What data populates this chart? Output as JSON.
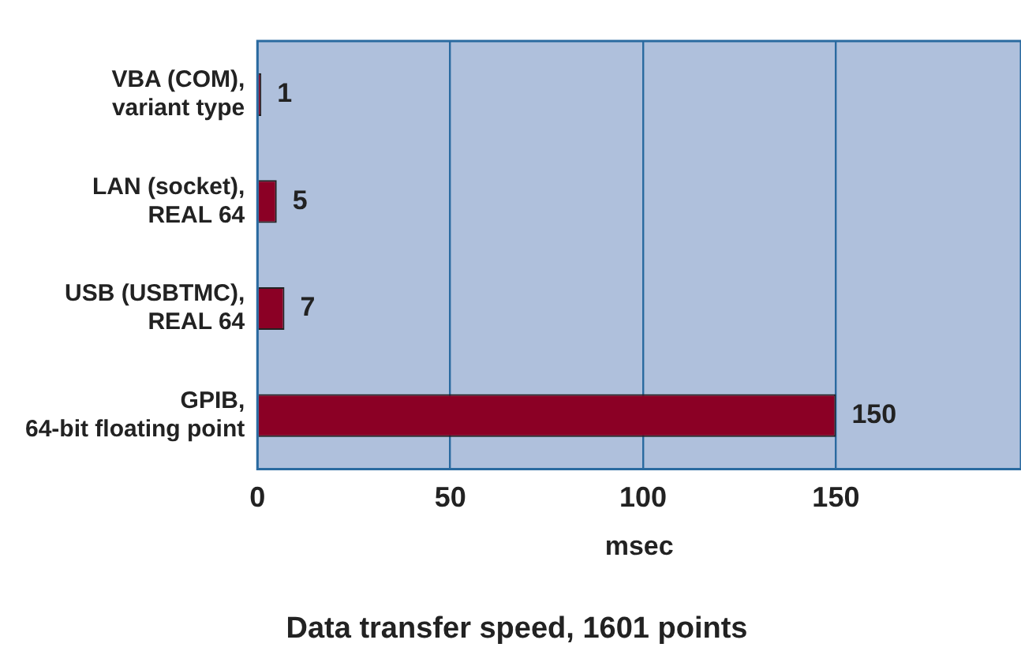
{
  "chart_data": {
    "type": "bar",
    "orientation": "horizontal",
    "title": "Data transfer speed, 1601 points",
    "xlabel": "msec",
    "categories": [
      "VBA (COM),\nvariant type",
      "LAN (socket),\nREAL 64",
      "USB (USBTMC),\nREAL 64",
      "GPIB,\n64-bit floating point"
    ],
    "values": [
      1,
      5,
      7,
      150
    ],
    "color": "#8b0025",
    "xlim": [
      0,
      198
    ],
    "xticks": [
      0,
      50,
      100,
      150
    ],
    "grid": "x",
    "data_labels": true,
    "legend": false
  }
}
